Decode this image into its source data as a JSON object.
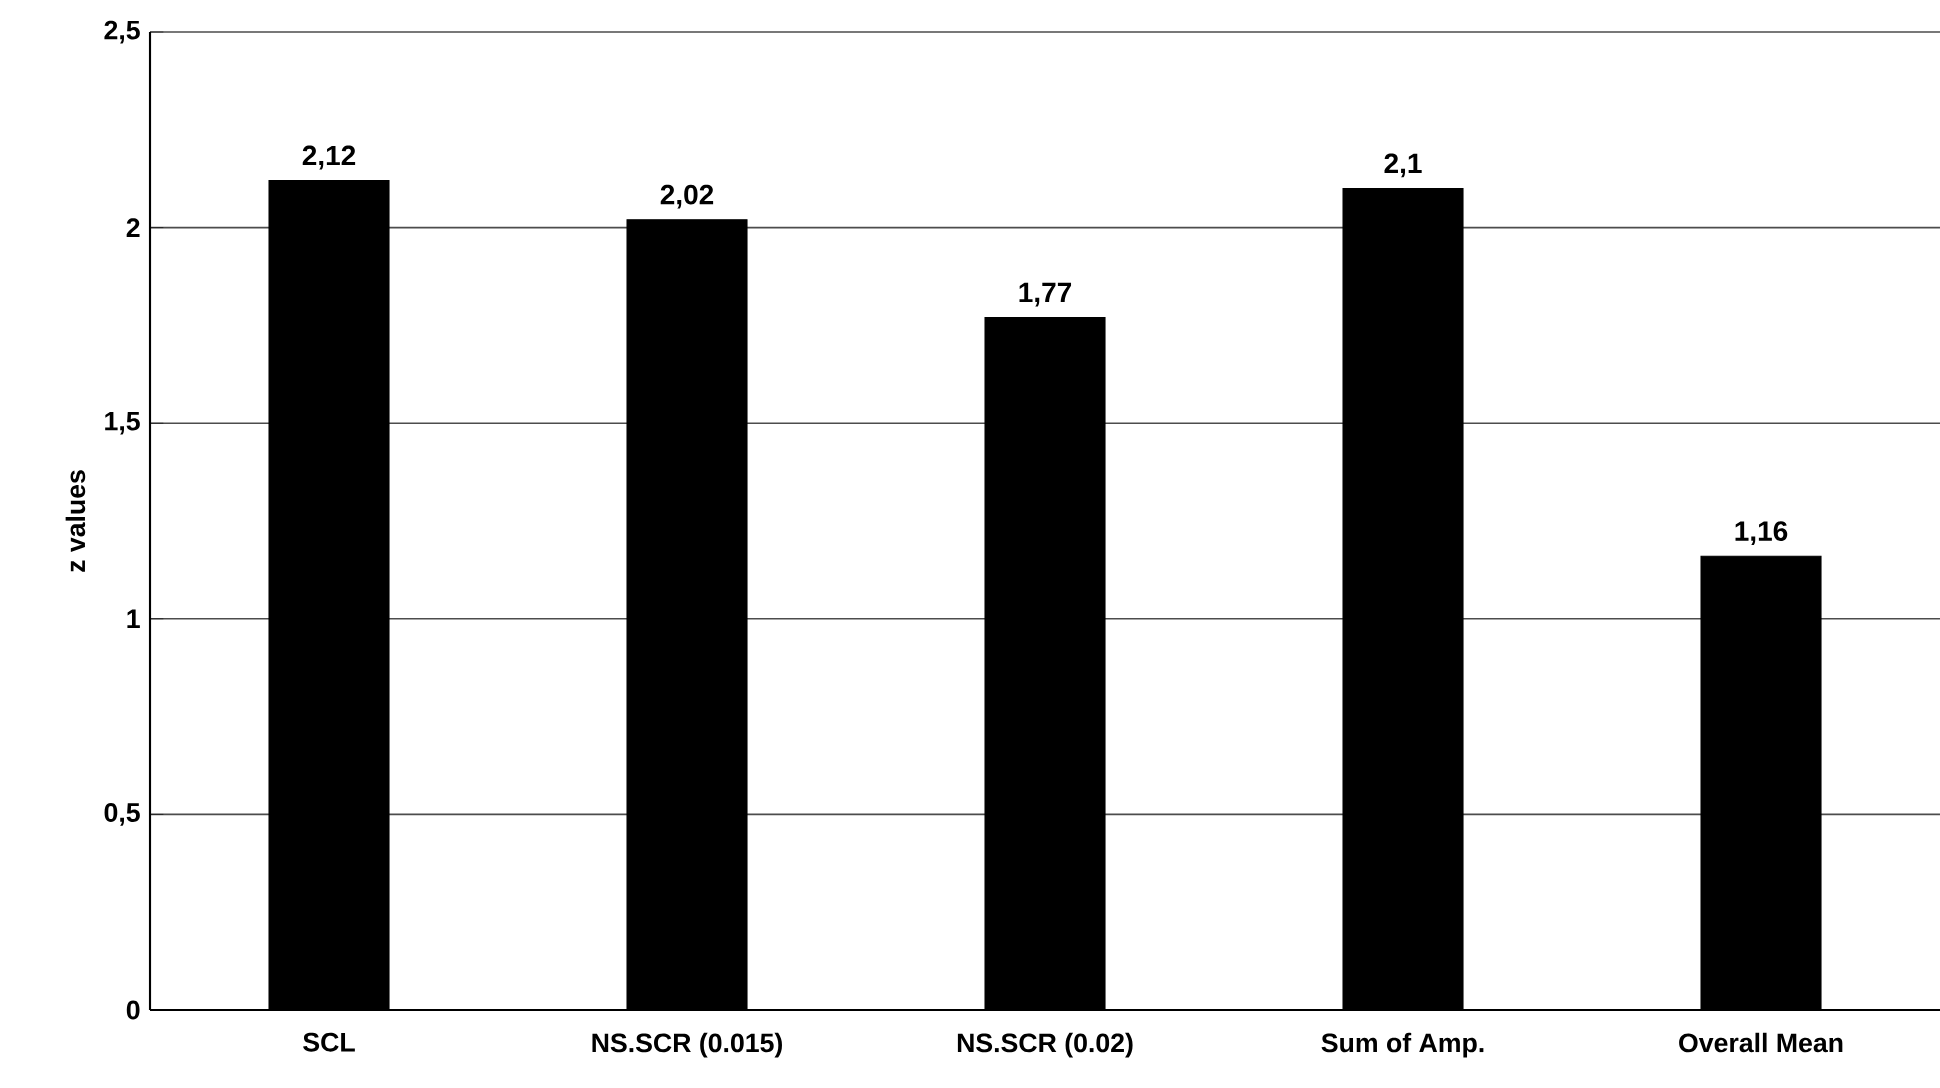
{
  "chart_data": {
    "type": "bar",
    "ylabel": "z values",
    "categories": [
      "SCL",
      "NS.SCR (0.015)",
      "NS.SCR (0.02)",
      "Sum of Amp.",
      "Overall Mean"
    ],
    "values": [
      2.12,
      2.02,
      1.77,
      2.1,
      1.16
    ],
    "value_labels": [
      "2,12",
      "2,02",
      "1,77",
      "2,1",
      "1,16"
    ],
    "color": "#000000",
    "ylim": [
      0,
      2.5
    ],
    "yticks": [
      0,
      {
        "value": 0.5,
        "label": "0,5"
      },
      1,
      {
        "value": 1.5,
        "label": "1,5"
      },
      2,
      {
        "value": 2.5,
        "label": "2,5"
      }
    ],
    "grid": "y"
  }
}
